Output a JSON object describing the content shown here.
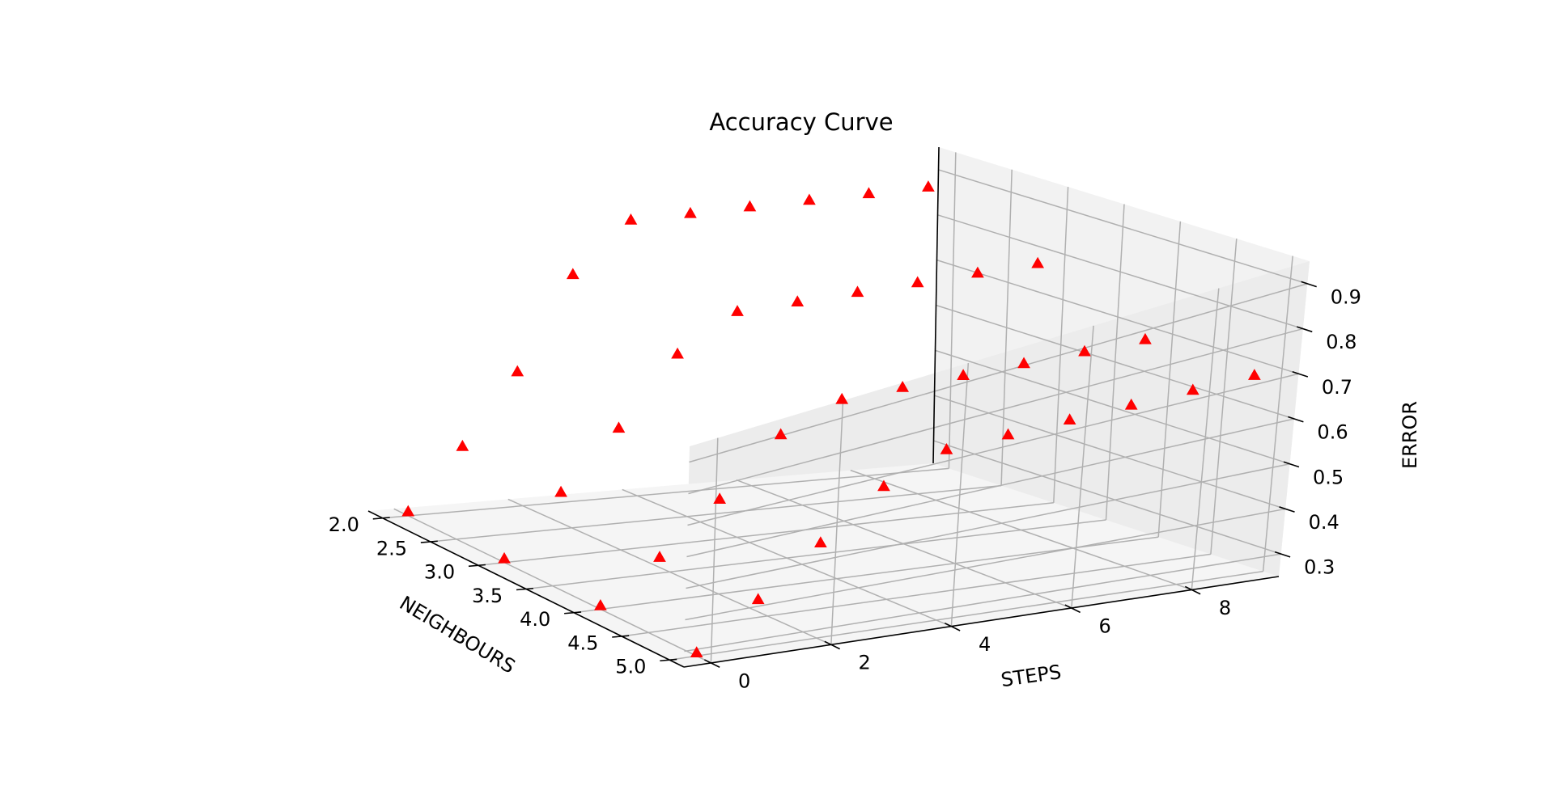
{
  "chart_data": {
    "type": "scatter",
    "projection": "3d",
    "title": "Accuracy Curve",
    "xlabel": "NEIGHBOURS",
    "ylabel": "STEPS",
    "zlabel": "ERROR",
    "xlim": [
      1.85,
      5.15
    ],
    "ylim": [
      -0.45,
      9.45
    ],
    "zlim": [
      0.25,
      0.95
    ],
    "xticks": [
      2.0,
      2.5,
      3.0,
      3.5,
      4.0,
      4.5,
      5.0
    ],
    "xtick_labels": [
      "2.0",
      "2.5",
      "3.0",
      "3.5",
      "4.0",
      "4.5",
      "5.0"
    ],
    "yticks": [
      0,
      2,
      4,
      6,
      8
    ],
    "ytick_labels": [
      "0",
      "2",
      "4",
      "6",
      "8"
    ],
    "zticks": [
      0.3,
      0.4,
      0.5,
      0.6,
      0.7,
      0.8,
      0.9
    ],
    "ztick_labels": [
      "0.3",
      "0.4",
      "0.5",
      "0.6",
      "0.7",
      "0.8",
      "0.9"
    ],
    "grid": true,
    "marker": "triangle",
    "color": "#ff0000",
    "points": [
      {
        "x": 2.0,
        "y": 0,
        "z": 0.26
      },
      {
        "x": 2.0,
        "y": 1,
        "z": 0.4
      },
      {
        "x": 2.0,
        "y": 2,
        "z": 0.56
      },
      {
        "x": 2.0,
        "y": 3,
        "z": 0.77
      },
      {
        "x": 2.0,
        "y": 4,
        "z": 0.88
      },
      {
        "x": 2.0,
        "y": 5,
        "z": 0.88
      },
      {
        "x": 2.0,
        "y": 6,
        "z": 0.88
      },
      {
        "x": 2.0,
        "y": 7,
        "z": 0.88
      },
      {
        "x": 2.0,
        "y": 8,
        "z": 0.88
      },
      {
        "x": 2.0,
        "y": 9,
        "z": 0.88
      },
      {
        "x": 3.0,
        "y": 0,
        "z": 0.26
      },
      {
        "x": 3.0,
        "y": 1,
        "z": 0.41
      },
      {
        "x": 3.0,
        "y": 2,
        "z": 0.55
      },
      {
        "x": 3.0,
        "y": 3,
        "z": 0.71
      },
      {
        "x": 3.0,
        "y": 4,
        "z": 0.79
      },
      {
        "x": 3.0,
        "y": 5,
        "z": 0.79
      },
      {
        "x": 3.0,
        "y": 6,
        "z": 0.79
      },
      {
        "x": 3.0,
        "y": 7,
        "z": 0.79
      },
      {
        "x": 3.0,
        "y": 8,
        "z": 0.79
      },
      {
        "x": 3.0,
        "y": 9,
        "z": 0.79
      },
      {
        "x": 4.0,
        "y": 0,
        "z": 0.26
      },
      {
        "x": 4.0,
        "y": 1,
        "z": 0.37
      },
      {
        "x": 4.0,
        "y": 2,
        "z": 0.5
      },
      {
        "x": 4.0,
        "y": 3,
        "z": 0.64
      },
      {
        "x": 4.0,
        "y": 4,
        "z": 0.7
      },
      {
        "x": 4.0,
        "y": 5,
        "z": 0.7
      },
      {
        "x": 4.0,
        "y": 6,
        "z": 0.7
      },
      {
        "x": 4.0,
        "y": 7,
        "z": 0.7
      },
      {
        "x": 4.0,
        "y": 8,
        "z": 0.7
      },
      {
        "x": 4.0,
        "y": 9,
        "z": 0.7
      },
      {
        "x": 5.0,
        "y": 0,
        "z": 0.26
      },
      {
        "x": 5.0,
        "y": 1,
        "z": 0.39
      },
      {
        "x": 5.0,
        "y": 2,
        "z": 0.52
      },
      {
        "x": 5.0,
        "y": 3,
        "z": 0.64
      },
      {
        "x": 5.0,
        "y": 4,
        "z": 0.7
      },
      {
        "x": 5.0,
        "y": 5,
        "z": 0.7
      },
      {
        "x": 5.0,
        "y": 6,
        "z": 0.7
      },
      {
        "x": 5.0,
        "y": 7,
        "z": 0.7
      },
      {
        "x": 5.0,
        "y": 8,
        "z": 0.7
      },
      {
        "x": 5.0,
        "y": 9,
        "z": 0.7
      }
    ]
  }
}
